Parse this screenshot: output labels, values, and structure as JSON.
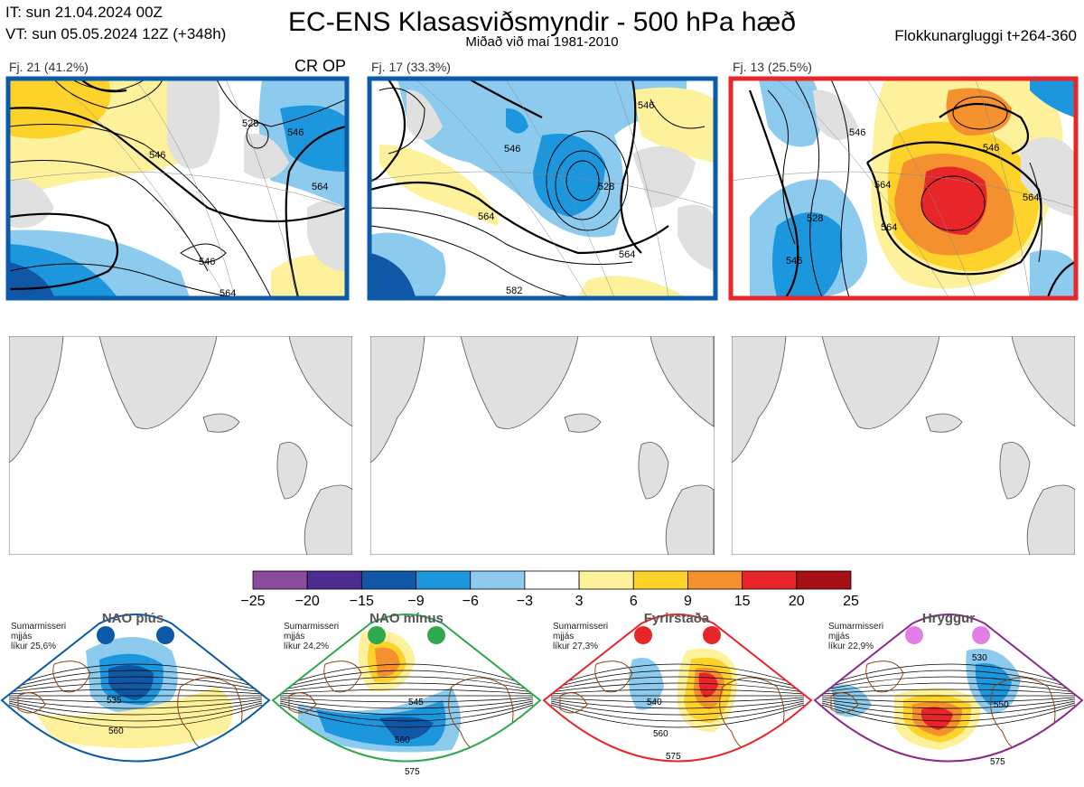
{
  "header": {
    "issue_time": "IT: sun 21.04.2024 00Z",
    "valid_time": "VT: sun 05.05.2024 12Z  (+348h)",
    "title": "EC-ENS Klasasviðsmyndir - 500 hPa hæð",
    "subtitle": "Miðað við maí 1981-2010",
    "cluster_window": "Flokkunargluggi t+264-360"
  },
  "clusters": [
    {
      "label": "Fj. 21 (41.2%)",
      "members": 21,
      "percent": 41.2,
      "frame_color": "#0a5aa8",
      "marker": "CR OP",
      "contour_labels": [
        "546",
        "528",
        "546",
        "546",
        "564",
        "564"
      ]
    },
    {
      "label": "Fj. 17 (33.3%)",
      "members": 17,
      "percent": 33.3,
      "frame_color": "#0a5aa8",
      "contour_labels": [
        "546",
        "564",
        "528",
        "546",
        "564",
        "582"
      ]
    },
    {
      "label": "Fj. 13 (25.5%)",
      "members": 13,
      "percent": 25.5,
      "frame_color": "#e8262a",
      "contour_labels": [
        "546",
        "546",
        "528",
        "546",
        "564",
        "564",
        "564"
      ]
    }
  ],
  "colors": {
    "map_land": "#e0e0e0",
    "coast": "#555555",
    "regime_coast": "#8b4513",
    "nao_plus": "#0a5aa8",
    "nao_minus": "#30a850",
    "blocking": "#e8262a",
    "ridge": "#8a2a8a"
  },
  "chart_data": {
    "type": "heatmap",
    "title": "EC-ENS Klasasviðsmyndir - 500 hPa hæð",
    "colorbar": {
      "ticks": [
        "−25",
        "−20",
        "−15",
        "−9",
        "−6",
        "−3",
        "3",
        "6",
        "9",
        "15",
        "20",
        "25"
      ],
      "colors": [
        "#8b4b9c",
        "#4c2c90",
        "#1058a6",
        "#1c96dd",
        "#8ccbee",
        "#ffffff",
        "#fdf19c",
        "#fdd22a",
        "#f5902e",
        "#e8262a",
        "#a50f15"
      ]
    },
    "regimes": [
      {
        "name": "NAO plús",
        "season": "Sumarmisseri",
        "smoothing": "mjjás",
        "likelihood": "líkur 25,6%",
        "probability": 25.6,
        "marker_color": "#0a5aa8",
        "frame_color": "#0a5aa8",
        "contour_labels": [
          "535",
          "560"
        ]
      },
      {
        "name": "NAO mínus",
        "season": "Sumarmisseri",
        "smoothing": "mjjás",
        "likelihood": "líkur 24,2%",
        "probability": 24.2,
        "marker_color": "#30a850",
        "frame_color": "#30a850",
        "contour_labels": [
          "545",
          "560",
          "575"
        ]
      },
      {
        "name": "Fyrirstaða",
        "season": "Sumarmisseri",
        "smoothing": "mjjás",
        "likelihood": "líkur 27,3%",
        "probability": 27.3,
        "marker_color": "#e8262a",
        "frame_color": "#e8262a",
        "contour_labels": [
          "540",
          "560",
          "575"
        ]
      },
      {
        "name": "Hryggur",
        "season": "Sumarmisseri",
        "smoothing": "mjjás",
        "likelihood": "líkur 22,9%",
        "probability": 22.9,
        "marker_color": "#e27ee6",
        "frame_color": "#8a2a8a",
        "contour_labels": [
          "530",
          "550",
          "575"
        ]
      }
    ]
  }
}
